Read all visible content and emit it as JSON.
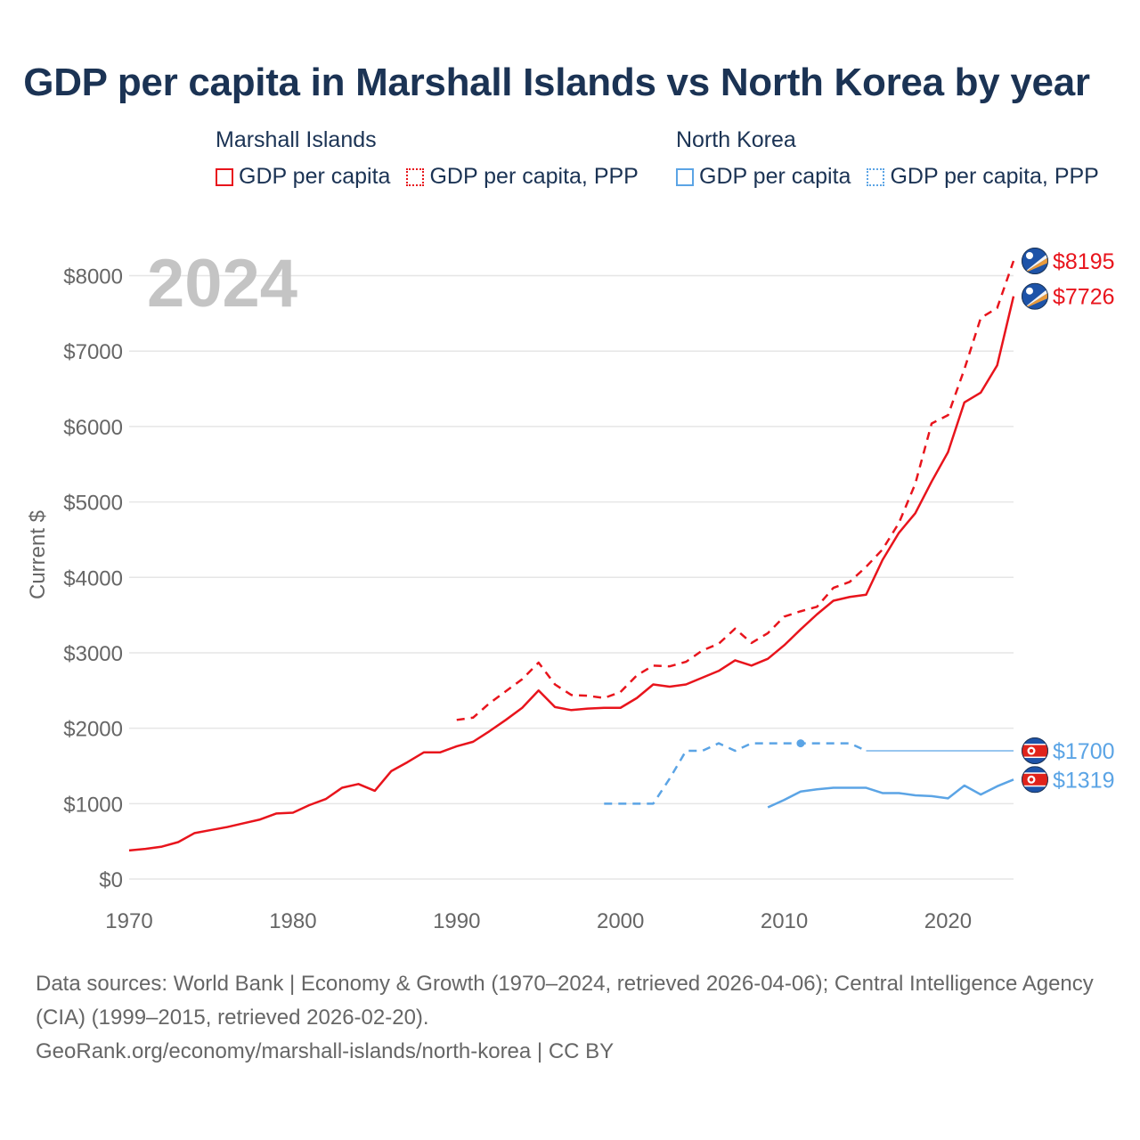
{
  "title": "GDP per capita in Marshall Islands vs North Korea by year",
  "legend": {
    "groups": [
      {
        "country": "Marshall Islands",
        "color": "#e8141c",
        "items": [
          {
            "label": "GDP per capita",
            "style": "solid"
          },
          {
            "label": "GDP per capita, PPP",
            "style": "dotted"
          }
        ]
      },
      {
        "country": "North Korea",
        "color": "#5ba4e5",
        "items": [
          {
            "label": "GDP per capita",
            "style": "solid"
          },
          {
            "label": "GDP per capita, PPP",
            "style": "dotted"
          }
        ]
      }
    ]
  },
  "year_watermark": "2024",
  "colors": {
    "marshall": "#e8141c",
    "northkorea": "#5ba4e5",
    "grid": "#e6e6e6",
    "axis_text": "#666666",
    "watermark": "#c4c4c4"
  },
  "chart_data": {
    "type": "line",
    "title": "GDP per capita in Marshall Islands vs North Korea by year",
    "xlabel": "",
    "ylabel": "Current $",
    "xlim": [
      1970,
      2024
    ],
    "ylim": [
      0,
      8200
    ],
    "x_ticks": [
      1970,
      1980,
      1990,
      2000,
      2010,
      2020
    ],
    "y_ticks": [
      0,
      1000,
      2000,
      3000,
      4000,
      5000,
      6000,
      7000,
      8000
    ],
    "y_tick_labels": [
      "$0",
      "$1000",
      "$2000",
      "$3000",
      "$4000",
      "$5000",
      "$6000",
      "$7000",
      "$8000"
    ],
    "grid": true,
    "series": [
      {
        "name": "Marshall Islands GDP per capita",
        "country": "marshall",
        "style": "solid",
        "x": [
          1970,
          1971,
          1972,
          1973,
          1974,
          1975,
          1976,
          1977,
          1978,
          1979,
          1980,
          1981,
          1982,
          1983,
          1984,
          1985,
          1986,
          1987,
          1988,
          1989,
          1990,
          1991,
          1992,
          1993,
          1994,
          1995,
          1996,
          1997,
          1998,
          1999,
          2000,
          2001,
          2002,
          2003,
          2004,
          2005,
          2006,
          2007,
          2008,
          2009,
          2010,
          2011,
          2012,
          2013,
          2014,
          2015,
          2016,
          2017,
          2018,
          2019,
          2020,
          2021,
          2022,
          2023,
          2024
        ],
        "values": [
          380,
          400,
          430,
          490,
          610,
          650,
          690,
          740,
          790,
          870,
          880,
          980,
          1060,
          1210,
          1260,
          1170,
          1430,
          1550,
          1680,
          1680,
          1760,
          1820,
          1960,
          2110,
          2270,
          2500,
          2280,
          2240,
          2260,
          2270,
          2270,
          2400,
          2580,
          2550,
          2580,
          2670,
          2760,
          2900,
          2830,
          2920,
          3100,
          3310,
          3510,
          3690,
          3740,
          3770,
          4230,
          4590,
          4850,
          5270,
          5660,
          6320,
          6450,
          6810,
          7726
        ],
        "end_label": "$7726"
      },
      {
        "name": "Marshall Islands GDP per capita, PPP",
        "country": "marshall",
        "style": "dashed",
        "x": [
          1990,
          1991,
          1992,
          1993,
          1994,
          1995,
          1996,
          1997,
          1998,
          1999,
          2000,
          2001,
          2002,
          2003,
          2004,
          2005,
          2006,
          2007,
          2008,
          2009,
          2010,
          2011,
          2012,
          2013,
          2014,
          2015,
          2016,
          2017,
          2018,
          2019,
          2020,
          2021,
          2022,
          2023,
          2024
        ],
        "values": [
          2110,
          2140,
          2330,
          2490,
          2650,
          2870,
          2580,
          2440,
          2430,
          2400,
          2480,
          2700,
          2830,
          2820,
          2880,
          3030,
          3120,
          3320,
          3130,
          3260,
          3480,
          3550,
          3610,
          3860,
          3940,
          4140,
          4370,
          4720,
          5240,
          6040,
          6150,
          6760,
          7440,
          7570,
          8195
        ],
        "end_label": "$8195"
      },
      {
        "name": "North Korea GDP per capita",
        "country": "northkorea",
        "style": "solid",
        "x": [
          2009,
          2010,
          2011,
          2012,
          2013,
          2014,
          2015,
          2016,
          2017,
          2018,
          2019,
          2020,
          2021,
          2022,
          2023,
          2024
        ],
        "values": [
          950,
          1050,
          1160,
          1190,
          1210,
          1210,
          1210,
          1140,
          1140,
          1110,
          1100,
          1070,
          1240,
          1120,
          1230,
          1319
        ],
        "end_label": "$1319"
      },
      {
        "name": "North Korea GDP per capita, PPP",
        "country": "northkorea",
        "style": "dashed",
        "x": [
          1999,
          2000,
          2001,
          2002,
          2003,
          2004,
          2005,
          2006,
          2007,
          2008,
          2009,
          2010,
          2011,
          2012,
          2013,
          2014,
          2015
        ],
        "values": [
          1000,
          1000,
          1000,
          1000,
          1330,
          1700,
          1700,
          1800,
          1700,
          1800,
          1800,
          1800,
          1800,
          1800,
          1800,
          1800,
          1700
        ],
        "highlight_x": 2011,
        "carried_forward_to": 2024,
        "end_label": "$1700"
      }
    ]
  },
  "source": {
    "line1": "Data sources: World Bank | Economy & Growth (1970–2024, retrieved 2026-04-06); Central Intelligence Agency (CIA) (1999–2015, retrieved 2026-02-20).",
    "line2": "GeoRank.org/economy/marshall-islands/north-korea | CC BY"
  }
}
